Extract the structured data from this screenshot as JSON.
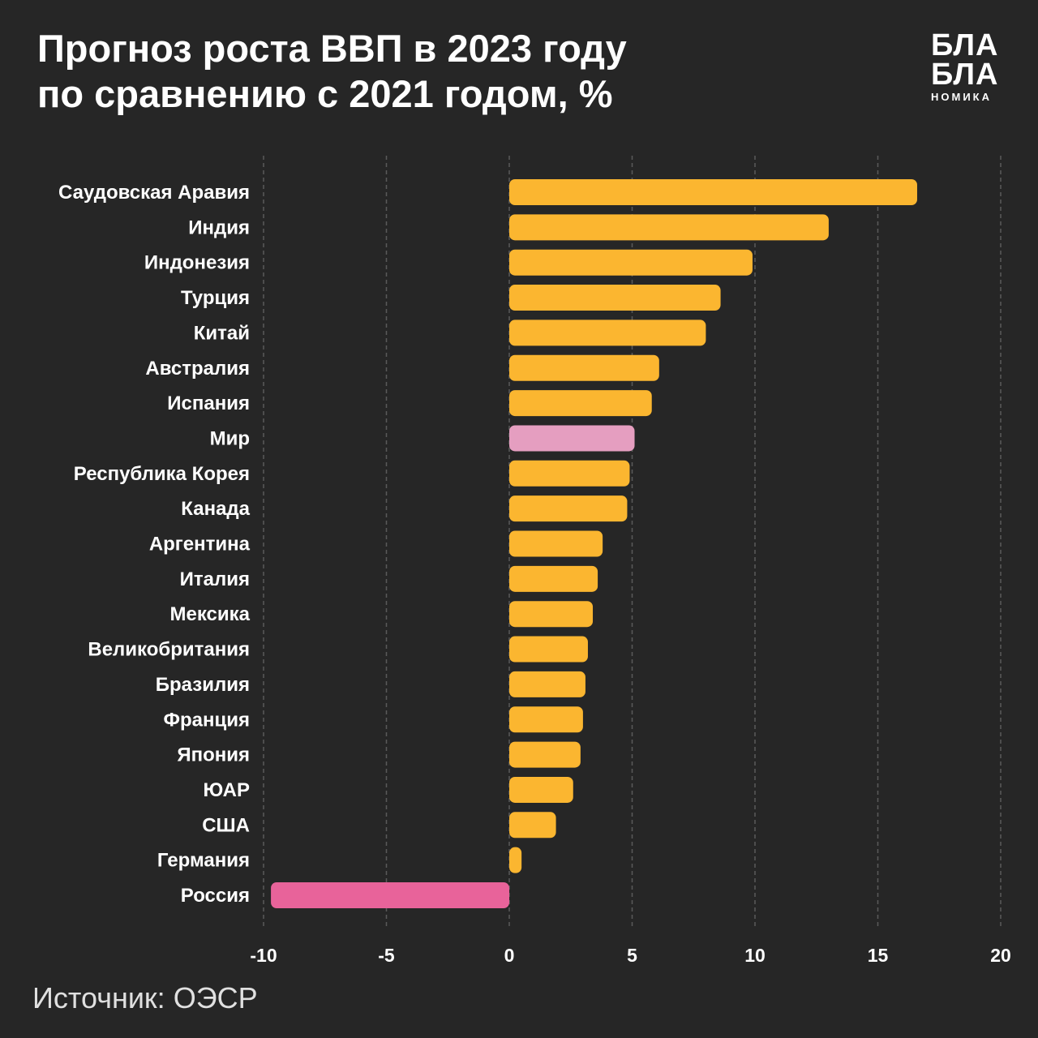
{
  "header": {
    "title_line1": "Прогноз роста ВВП в 2023 году",
    "title_line2": "по сравнению с 2021 годом, %"
  },
  "logo": {
    "line1": "БЛА",
    "line2": "БЛА",
    "line3": "НОМИКА"
  },
  "footer": {
    "source": "Источник: ОЭСР"
  },
  "colors": {
    "background": "#262626",
    "bar_default": "#fbb630",
    "bar_world": "#e59ec0",
    "bar_russia": "#e8639a",
    "grid": "#5a5a5a"
  },
  "chart_data": {
    "type": "bar",
    "orientation": "horizontal",
    "title": "Прогноз роста ВВП в 2023 году по сравнению с 2021 годом, %",
    "xlabel": "",
    "ylabel": "",
    "xlim": [
      -10,
      20
    ],
    "xticks": [
      -10,
      -5,
      0,
      5,
      10,
      15,
      20
    ],
    "xtick_labels": [
      "-10",
      "-5",
      "0",
      "5",
      "10",
      "15",
      "20"
    ],
    "grid": "vertical dashed",
    "categories": [
      "Саудовская Аравия",
      "Индия",
      "Индонезия",
      "Турция",
      "Китай",
      "Австралия",
      "Испания",
      "Мир",
      "Республика Корея",
      "Канада",
      "Аргентина",
      "Италия",
      "Мексика",
      "Великобритания",
      "Бразилия",
      "Франция",
      "Япония",
      "ЮАР",
      "США",
      "Германия",
      "Россия"
    ],
    "values": [
      16.6,
      13.0,
      9.9,
      8.6,
      8.0,
      6.1,
      5.8,
      5.1,
      4.9,
      4.8,
      3.8,
      3.6,
      3.4,
      3.2,
      3.1,
      3.0,
      2.9,
      2.6,
      1.9,
      0.5,
      -9.7
    ],
    "highlight": {
      "Мир": "#e59ec0",
      "Россия": "#e8639a"
    }
  }
}
